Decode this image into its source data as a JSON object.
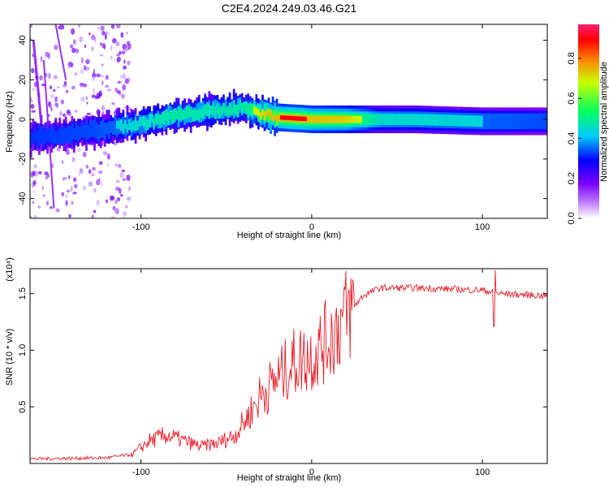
{
  "figure_title": "C2E4.2024.249.03.46.G21",
  "chart_data": [
    {
      "type": "heatmap",
      "title": "C2E4.2024.249.03.46.G21",
      "xlabel": "Height of straight line (km)",
      "ylabel": "Frequency (Hz)",
      "xlim": [
        -165,
        138
      ],
      "ylim": [
        -50,
        48
      ],
      "x_ticks": [
        -100,
        0,
        100
      ],
      "y_ticks": [
        40,
        20,
        0,
        -20,
        -40
      ],
      "colorbar": {
        "label": "Normalized spectral amplitude",
        "range": [
          0,
          0.97
        ],
        "ticks": [
          0.0,
          0.2,
          0.4,
          0.6,
          0.8
        ],
        "colors": [
          "#ffffff",
          "#8800ff",
          "#0000ff",
          "#00ffff",
          "#00ff00",
          "#ffff00",
          "#ff0000",
          "#ff0066"
        ]
      },
      "ridge_center": [
        {
          "x": -165,
          "y": -9
        },
        {
          "x": -140,
          "y": -7
        },
        {
          "x": -120,
          "y": -5
        },
        {
          "x": -100,
          "y": -2
        },
        {
          "x": -80,
          "y": 2
        },
        {
          "x": -60,
          "y": 4
        },
        {
          "x": -40,
          "y": 6
        },
        {
          "x": -30,
          "y": 3
        },
        {
          "x": -20,
          "y": 1
        },
        {
          "x": 0,
          "y": 0
        },
        {
          "x": 20,
          "y": 0
        },
        {
          "x": 60,
          "y": 0
        },
        {
          "x": 100,
          "y": -1
        },
        {
          "x": 138,
          "y": -1
        }
      ],
      "ridge_amplitude": [
        {
          "x": -165,
          "a": 0.35
        },
        {
          "x": -130,
          "a": 0.4
        },
        {
          "x": -100,
          "a": 0.5
        },
        {
          "x": -80,
          "a": 0.6
        },
        {
          "x": -60,
          "a": 0.55
        },
        {
          "x": -40,
          "a": 0.6
        },
        {
          "x": -25,
          "a": 0.9
        },
        {
          "x": -10,
          "a": 0.95
        },
        {
          "x": 0,
          "a": 0.9
        },
        {
          "x": 20,
          "a": 0.85
        },
        {
          "x": 40,
          "a": 0.5
        },
        {
          "x": 100,
          "a": 0.45
        },
        {
          "x": 138,
          "a": 0.4
        }
      ]
    },
    {
      "type": "line",
      "xlabel": "Height of straight line (km)",
      "ylabel": "SNR (10 * v/v)",
      "y_scale_label": "(x10⁴)",
      "xlim": [
        -165,
        138
      ],
      "ylim": [
        0,
        1.72
      ],
      "x_ticks": [
        -100,
        0,
        100
      ],
      "y_ticks": [
        0.5,
        1.0,
        1.5
      ],
      "color": "#e8202a",
      "series": [
        {
          "values": [
            {
              "x": -165,
              "y": 0.04
            },
            {
              "x": -120,
              "y": 0.05
            },
            {
              "x": -105,
              "y": 0.08
            },
            {
              "x": -95,
              "y": 0.2
            },
            {
              "x": -85,
              "y": 0.25
            },
            {
              "x": -75,
              "y": 0.2
            },
            {
              "x": -65,
              "y": 0.15
            },
            {
              "x": -55,
              "y": 0.18
            },
            {
              "x": -45,
              "y": 0.25
            },
            {
              "x": -38,
              "y": 0.4
            },
            {
              "x": -30,
              "y": 0.6
            },
            {
              "x": -20,
              "y": 0.75
            },
            {
              "x": -10,
              "y": 0.9
            },
            {
              "x": 0,
              "y": 0.95
            },
            {
              "x": 10,
              "y": 1.1
            },
            {
              "x": 20,
              "y": 1.3
            },
            {
              "x": 30,
              "y": 1.48
            },
            {
              "x": 40,
              "y": 1.55
            },
            {
              "x": 60,
              "y": 1.55
            },
            {
              "x": 80,
              "y": 1.54
            },
            {
              "x": 100,
              "y": 1.53
            },
            {
              "x": 110,
              "y": 1.5
            },
            {
              "x": 138,
              "y": 1.48
            }
          ]
        }
      ]
    }
  ]
}
